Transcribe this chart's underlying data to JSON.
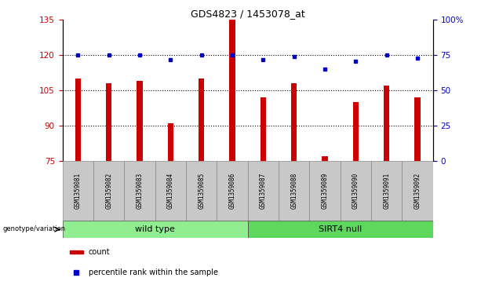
{
  "title": "GDS4823 / 1453078_at",
  "samples": [
    "GSM1359081",
    "GSM1359082",
    "GSM1359083",
    "GSM1359084",
    "GSM1359085",
    "GSM1359086",
    "GSM1359087",
    "GSM1359088",
    "GSM1359089",
    "GSM1359090",
    "GSM1359091",
    "GSM1359092"
  ],
  "counts": [
    110,
    108,
    109,
    91,
    110,
    135,
    102,
    108,
    77,
    100,
    107,
    102
  ],
  "percentiles": [
    75,
    75,
    75,
    72,
    75,
    75,
    72,
    74,
    65,
    71,
    75,
    73
  ],
  "groups": [
    {
      "label": "wild type",
      "start": 0,
      "end": 6,
      "color": "#90EE90"
    },
    {
      "label": "SIRT4 null",
      "start": 6,
      "end": 12,
      "color": "#5DD85D"
    }
  ],
  "group_label_prefix": "genotype/variation",
  "ylim_left": [
    75,
    135
  ],
  "ylim_right": [
    0,
    100
  ],
  "yticks_left": [
    75,
    90,
    105,
    120,
    135
  ],
  "yticks_right": [
    0,
    25,
    50,
    75,
    100
  ],
  "bar_color": "#CC0000",
  "dot_color": "#0000CC",
  "grid_color": "black",
  "bg_color": "#FFFFFF",
  "tick_area_bg": "#C8C8C8",
  "legend_count_color": "#CC0000",
  "legend_pct_color": "#0000CC",
  "bar_width": 0.18
}
